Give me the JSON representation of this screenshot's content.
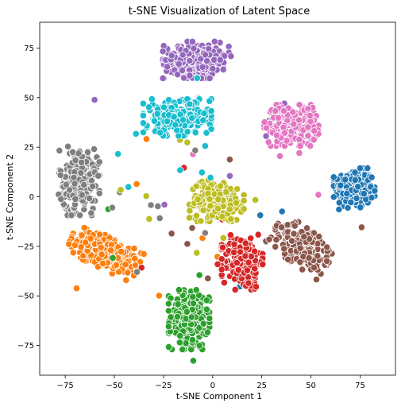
{
  "chart_data": {
    "type": "scatter",
    "title": "t-SNE Visualization of Latent Space",
    "xlabel": "t-SNE Component 1",
    "ylabel": "t-SNE Component 2",
    "xlim": [
      -88,
      93
    ],
    "ylim": [
      -90,
      88
    ],
    "xticks": [
      -75,
      -50,
      -25,
      0,
      25,
      50,
      75
    ],
    "yticks": [
      -75,
      -50,
      -25,
      0,
      25,
      50,
      75
    ],
    "grid": false,
    "legend": "none",
    "marker_edge_color": "#ffffff",
    "clusters": [
      {
        "color": "#1f77b4",
        "center": [
          72,
          4
        ],
        "spread": [
          9,
          9
        ],
        "count": 260
      },
      {
        "color": "#ff7f0e",
        "center": [
          -55,
          -28
        ],
        "spread": [
          16,
          7
        ],
        "count": 260,
        "angle": -25
      },
      {
        "color": "#2ca02c",
        "center": [
          -12,
          -62
        ],
        "spread": [
          9,
          13
        ],
        "count": 240
      },
      {
        "color": "#d62728",
        "center": [
          15,
          -33
        ],
        "spread": [
          9,
          12
        ],
        "count": 240
      },
      {
        "color": "#9467bd",
        "center": [
          -8,
          69
        ],
        "spread": [
          15,
          8
        ],
        "count": 260
      },
      {
        "color": "#8c564b",
        "center": [
          45,
          -25
        ],
        "spread": [
          14,
          8
        ],
        "count": 220,
        "angle": -35
      },
      {
        "color": "#e377c2",
        "center": [
          40,
          36
        ],
        "spread": [
          12,
          9
        ],
        "count": 240
      },
      {
        "color": "#7f7f7f",
        "center": [
          -68,
          8
        ],
        "spread": [
          9,
          15
        ],
        "count": 240
      },
      {
        "color": "#bcbd22",
        "center": [
          2,
          -2
        ],
        "spread": [
          12,
          9
        ],
        "count": 240
      },
      {
        "color": "#17becf",
        "center": [
          -18,
          40
        ],
        "spread": [
          15,
          8
        ],
        "count": 260
      }
    ]
  }
}
